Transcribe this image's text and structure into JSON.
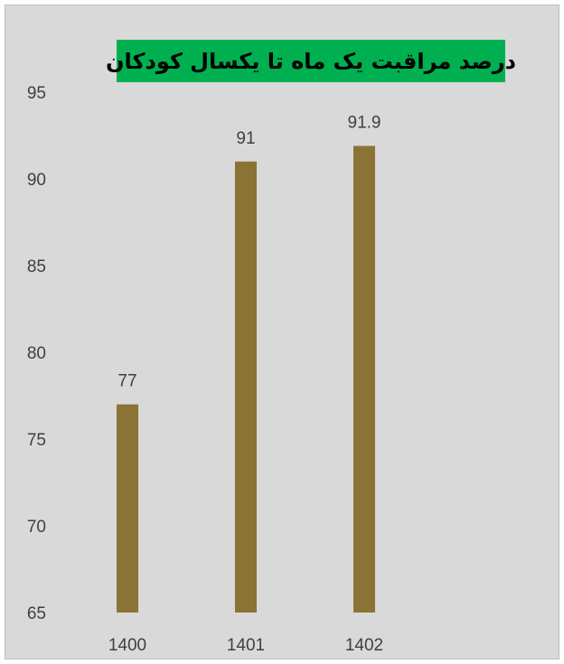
{
  "chart_data": {
    "type": "bar",
    "title": "درصد مراقبت یک ماه تا یکسال کودکان",
    "categories": [
      "1400",
      "1401",
      "1402"
    ],
    "values": [
      77,
      91,
      91.9
    ],
    "value_labels": [
      "77",
      "91",
      "91.9"
    ],
    "ylim": [
      65,
      95
    ],
    "yticks": [
      65,
      70,
      75,
      80,
      85,
      90,
      95
    ],
    "ytick_labels": [
      "65",
      "70",
      "75",
      "80",
      "85",
      "90",
      "95"
    ],
    "grid": false,
    "legend": "none",
    "colors": {
      "bar": "#8b7335",
      "background": "#d9d9d9",
      "title_background": "#00b050",
      "text": "#404040"
    }
  }
}
